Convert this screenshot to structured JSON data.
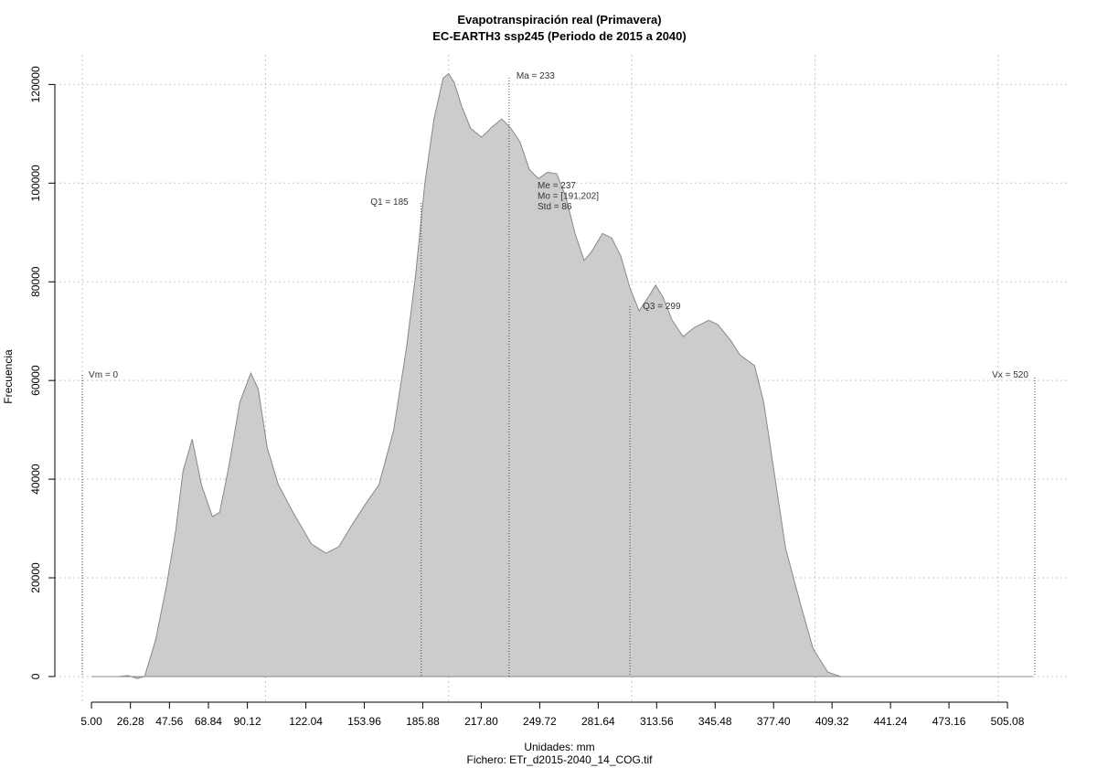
{
  "chart_data": {
    "type": "area",
    "title": "Evapotranspiración real (Primavera)",
    "subtitle": "EC-EARTH3 ssp245 (Periodo de 2015 a 2040)",
    "x_label": "Unidades: mm",
    "caption": "Fichero: ETr_d2015-2040_14_COG.tif",
    "y_label": "Frecuencia",
    "x": [
      5,
      20,
      25,
      30,
      34,
      40,
      46,
      51,
      55,
      60,
      65,
      71,
      75,
      80,
      86,
      92,
      96,
      101,
      107,
      115,
      125,
      133,
      140,
      147,
      155,
      162,
      170,
      177,
      182,
      187,
      192,
      197,
      200,
      203,
      207,
      212,
      218,
      224,
      229,
      234,
      239,
      244,
      249,
      254,
      259,
      264,
      269,
      274,
      278,
      284,
      289,
      294,
      299,
      304,
      309,
      313,
      317,
      322,
      328,
      334,
      342,
      347,
      354,
      359,
      367,
      372,
      378,
      384,
      392,
      399,
      407,
      414,
      519
    ],
    "values": [
      0,
      0,
      200,
      -400,
      0,
      7400,
      18500,
      29600,
      41700,
      48100,
      38900,
      32400,
      33300,
      42600,
      55600,
      61500,
      58300,
      46300,
      38900,
      33300,
      26900,
      25000,
      26300,
      30600,
      35200,
      38900,
      50000,
      66700,
      81500,
      100000,
      113000,
      121300,
      122200,
      120400,
      115700,
      111100,
      109300,
      111500,
      113000,
      111100,
      108300,
      102800,
      100900,
      102200,
      101900,
      97200,
      89800,
      84300,
      86100,
      89800,
      88900,
      85200,
      78700,
      74100,
      76900,
      79300,
      76900,
      72200,
      68900,
      70700,
      72200,
      71300,
      68100,
      65200,
      63000,
      55600,
      40700,
      25900,
      14800,
      5600,
      900,
      0,
      0
    ],
    "color": "#cccccc",
    "edge": "#888888",
    "xlim": [
      -15,
      539
    ],
    "ylim": [
      -5200,
      126000
    ],
    "xticks": [
      {
        "value": 5,
        "label": "5.00"
      },
      26.28,
      47.56,
      68.84,
      90.12,
      122.04,
      153.96,
      185.88,
      {
        "value": 217.8,
        "label": "217.80"
      },
      249.72,
      281.64,
      313.56,
      345.48,
      {
        "value": 377.4,
        "label": "377.40"
      },
      409.32,
      441.24,
      473.16,
      505.08
    ],
    "yticks": [
      0,
      20000,
      40000,
      60000,
      80000,
      100000,
      120000
    ],
    "xgrid": [
      0,
      100,
      200,
      300,
      400,
      500
    ],
    "grid": true,
    "annotations": [
      {
        "label": "Vm = 0",
        "x": 0
      },
      {
        "label": "Q1 = 185",
        "x": 185
      },
      {
        "label": "Ma = 233",
        "x": 233
      },
      {
        "label": "Q3 = 299",
        "x": 299
      },
      {
        "label": "Vx = 520",
        "x": 520
      }
    ],
    "stats": [
      "Me = 237",
      "Mo = [191,202]",
      "Std = 86"
    ]
  }
}
